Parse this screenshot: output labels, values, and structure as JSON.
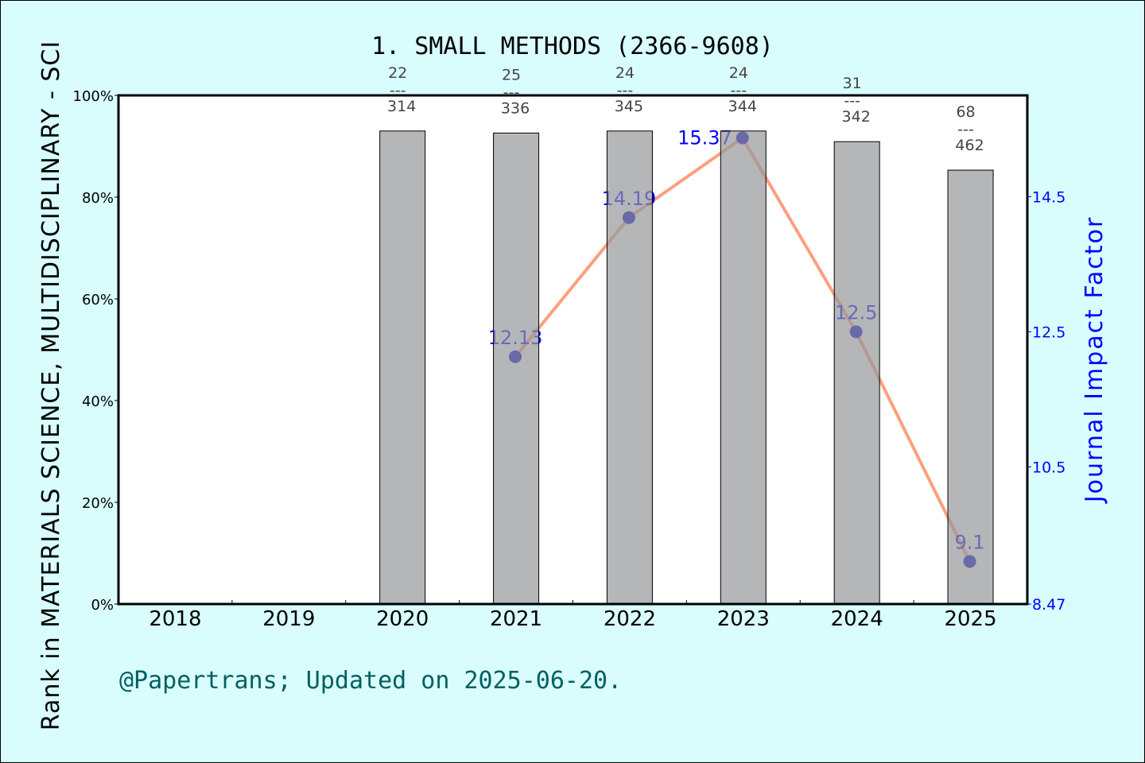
{
  "chart_data": {
    "type": "bar+line",
    "title": "1. SMALL METHODS (2366-9608)",
    "ylabel_left": "Rank in MATERIALS SCIENCE, MULTIDISCIPLINARY - SCI",
    "ylabel_right": "Journal Impact Factor",
    "categories": [
      "2018",
      "2019",
      "2020",
      "2021",
      "2022",
      "2023",
      "2024",
      "2025"
    ],
    "left_axis": {
      "ticks": [
        "0%",
        "20%",
        "40%",
        "60%",
        "80%",
        "100%"
      ],
      "range": [
        0,
        100
      ]
    },
    "right_axis": {
      "ticks": [
        "8.47",
        "10.5",
        "12.5",
        "14.5"
      ],
      "range": [
        8.47,
        16.0
      ]
    },
    "bars": {
      "name": "rank percentile",
      "values": [
        null,
        null,
        93.0,
        92.6,
        93.0,
        93.0,
        90.9,
        85.3
      ],
      "ranks": [
        null,
        null,
        "22",
        "25",
        "24",
        "24",
        "31",
        "68"
      ],
      "totals": [
        null,
        null,
        "314",
        "336",
        "345",
        "344",
        "342",
        "462"
      ],
      "separator": "---",
      "color": "#b8b9bb"
    },
    "line": {
      "name": "impact factor",
      "values": [
        null,
        null,
        null,
        12.13,
        14.19,
        15.37,
        12.5,
        9.1
      ],
      "labels": [
        null,
        null,
        null,
        "12.13",
        "14.19",
        "15.37",
        "12.5",
        "9.1"
      ],
      "line_color": "#ff9f80",
      "marker_color": "#0000cc",
      "label_color": "#0000ff"
    },
    "grid": false
  },
  "footer": "@Papertrans; Updated on 2025-06-20.",
  "colors": {
    "background": "#d9fdfd",
    "plot": "#ffffff",
    "footer": "#006060",
    "right_axis": "#0000ff"
  }
}
